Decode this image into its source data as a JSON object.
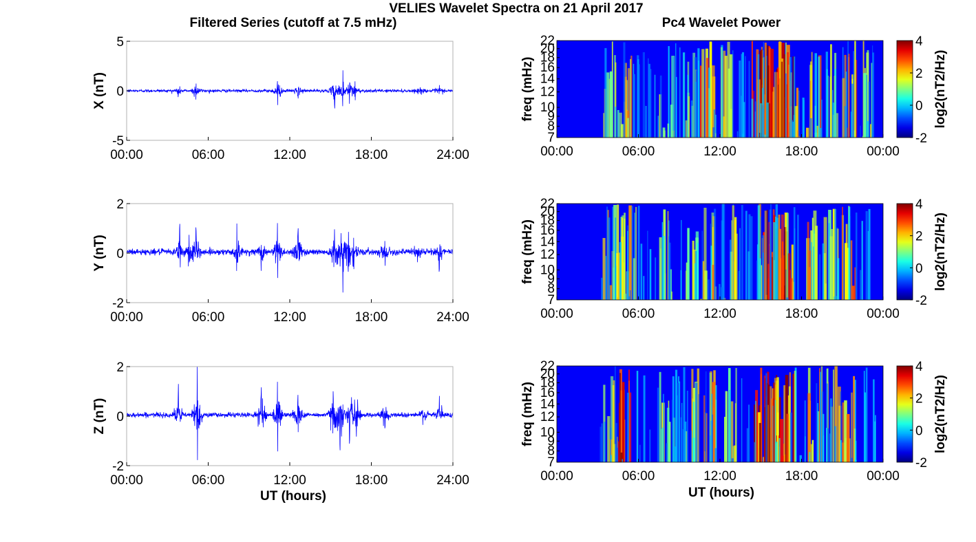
{
  "figure": {
    "title": "VELIES Wavelet Spectra on 21 April 2017"
  },
  "colors": {
    "trace": "#0000ff",
    "axis": "#000000",
    "background": "#ffffff"
  },
  "chart_data": [
    {
      "type": "line",
      "title": "Filtered Series (cutoff at 7.5 mHz)",
      "xlabel": "",
      "ylabel": "X (nT)",
      "xlim": [
        0,
        24
      ],
      "ylim": [
        -5,
        5
      ],
      "xticks": [
        0,
        6,
        12,
        18,
        24
      ],
      "xtick_labels": [
        "00:00",
        "06:00",
        "12:00",
        "18:00",
        "24:00"
      ],
      "yticks": [
        -5,
        0,
        5
      ],
      "ytick_labels": [
        "-5",
        "0",
        "5"
      ],
      "series": [
        {
          "baseline": 0.0,
          "noise": 0.12,
          "bursts": [
            {
              "t": 3.8,
              "amp": 0.7
            },
            {
              "t": 5.1,
              "amp": 1.3
            },
            {
              "t": 11.1,
              "amp": 1.9
            },
            {
              "t": 12.6,
              "amp": 0.9
            },
            {
              "t": 15.3,
              "amp": 1.5
            },
            {
              "t": 15.9,
              "amp": 2.0
            },
            {
              "t": 16.4,
              "amp": 1.3
            },
            {
              "t": 16.8,
              "amp": 1.0
            },
            {
              "t": 21.6,
              "amp": 0.5
            },
            {
              "t": 23.0,
              "amp": 0.6
            }
          ]
        }
      ]
    },
    {
      "type": "line",
      "title": "",
      "xlabel": "",
      "ylabel": "Y (nT)",
      "xlim": [
        0,
        24
      ],
      "ylim": [
        -2,
        2
      ],
      "xticks": [
        0,
        6,
        12,
        18,
        24
      ],
      "xtick_labels": [
        "00:00",
        "06:00",
        "12:00",
        "18:00",
        "24:00"
      ],
      "yticks": [
        -2,
        0,
        2
      ],
      "ytick_labels": [
        "-2",
        "0",
        "2"
      ],
      "series": [
        {
          "baseline": 0.05,
          "noise": 0.1,
          "bursts": [
            {
              "t": 3.9,
              "amp": 0.9
            },
            {
              "t": 4.6,
              "amp": 0.8
            },
            {
              "t": 5.1,
              "amp": 1.0
            },
            {
              "t": 8.1,
              "amp": 0.9
            },
            {
              "t": 9.9,
              "amp": 0.6
            },
            {
              "t": 11.1,
              "amp": 1.5
            },
            {
              "t": 12.6,
              "amp": 1.3
            },
            {
              "t": 15.3,
              "amp": 1.2
            },
            {
              "t": 15.9,
              "amp": 1.7
            },
            {
              "t": 16.3,
              "amp": 1.1
            },
            {
              "t": 16.7,
              "amp": 1.0
            },
            {
              "t": 19.0,
              "amp": 0.6
            },
            {
              "t": 21.4,
              "amp": 0.5
            },
            {
              "t": 23.0,
              "amp": 0.6
            }
          ]
        }
      ]
    },
    {
      "type": "line",
      "title": "",
      "xlabel": "UT (hours)",
      "ylabel": "Z (nT)",
      "xlim": [
        0,
        24
      ],
      "ylim": [
        -2,
        2
      ],
      "xticks": [
        0,
        6,
        12,
        18,
        24
      ],
      "xtick_labels": [
        "00:00",
        "06:00",
        "12:00",
        "18:00",
        "24:00"
      ],
      "yticks": [
        -2,
        0,
        2
      ],
      "ytick_labels": [
        "-2",
        "0",
        "2"
      ],
      "series": [
        {
          "baseline": 0.05,
          "noise": 0.08,
          "bursts": [
            {
              "t": 3.8,
              "amp": 0.9
            },
            {
              "t": 5.2,
              "amp": 1.8
            },
            {
              "t": 9.9,
              "amp": 1.2
            },
            {
              "t": 11.1,
              "amp": 1.6
            },
            {
              "t": 12.6,
              "amp": 0.9
            },
            {
              "t": 15.2,
              "amp": 1.5
            },
            {
              "t": 15.7,
              "amp": 1.6
            },
            {
              "t": 16.4,
              "amp": 1.3
            },
            {
              "t": 16.9,
              "amp": 0.9
            },
            {
              "t": 19.0,
              "amp": 0.6
            },
            {
              "t": 21.8,
              "amp": 0.5
            },
            {
              "t": 23.0,
              "amp": 0.9
            }
          ]
        }
      ]
    },
    {
      "type": "heatmap",
      "title": "Pc4 Wavelet Power",
      "xlabel": "",
      "ylabel": "freq (mHz)",
      "xlim": [
        0,
        24
      ],
      "ylim": [
        7,
        22
      ],
      "xticks": [
        0,
        6,
        12,
        18,
        24
      ],
      "xtick_labels": [
        "00:00",
        "06:00",
        "12:00",
        "18:00",
        "00:00"
      ],
      "yticks": [
        7,
        8,
        9,
        10,
        12,
        14,
        16,
        18,
        20,
        22
      ],
      "ytick_labels": [
        "7",
        "8",
        "9",
        "10",
        "12",
        "14",
        "16",
        "18",
        "20",
        "22"
      ],
      "colorbar": {
        "label": "log2(nT2/Hz)",
        "range": [
          -2,
          4
        ],
        "ticks": [
          "-2",
          "0",
          "2",
          "4"
        ],
        "colormap": "jet"
      },
      "activity": [
        {
          "t": 3.9,
          "lvl": 0.4
        },
        {
          "t": 4.8,
          "lvl": 0.35
        },
        {
          "t": 5.3,
          "lvl": 0.5
        },
        {
          "t": 8.1,
          "lvl": 0.3
        },
        {
          "t": 9.9,
          "lvl": 0.35
        },
        {
          "t": 11.1,
          "lvl": 0.6
        },
        {
          "t": 12.6,
          "lvl": 0.45
        },
        {
          "t": 14.9,
          "lvl": 0.7
        },
        {
          "t": 15.4,
          "lvl": 0.9
        },
        {
          "t": 15.9,
          "lvl": 0.95
        },
        {
          "t": 16.4,
          "lvl": 0.85
        },
        {
          "t": 16.9,
          "lvl": 0.8
        },
        {
          "t": 17.4,
          "lvl": 0.6
        },
        {
          "t": 18.9,
          "lvl": 0.55
        },
        {
          "t": 20.1,
          "lvl": 0.45
        },
        {
          "t": 21.5,
          "lvl": 0.6
        },
        {
          "t": 22.7,
          "lvl": 0.4
        }
      ]
    },
    {
      "type": "heatmap",
      "title": "",
      "xlabel": "",
      "ylabel": "freq (mHz)",
      "xlim": [
        0,
        24
      ],
      "ylim": [
        7,
        22
      ],
      "xticks": [
        0,
        6,
        12,
        18,
        24
      ],
      "xtick_labels": [
        "00:00",
        "06:00",
        "12:00",
        "18:00",
        "00:00"
      ],
      "yticks": [
        7,
        8,
        9,
        10,
        12,
        14,
        16,
        18,
        20,
        22
      ],
      "ytick_labels": [
        "7",
        "8",
        "9",
        "10",
        "12",
        "14",
        "16",
        "18",
        "20",
        "22"
      ],
      "colorbar": {
        "label": "log2(nT2/Hz)",
        "range": [
          -2,
          4
        ],
        "ticks": [
          "-2",
          "0",
          "2",
          "4"
        ],
        "colormap": "jet"
      },
      "activity": [
        {
          "t": 4.0,
          "lvl": 0.45
        },
        {
          "t": 4.6,
          "lvl": 0.4
        },
        {
          "t": 5.3,
          "lvl": 0.45
        },
        {
          "t": 8.0,
          "lvl": 0.4
        },
        {
          "t": 9.9,
          "lvl": 0.35
        },
        {
          "t": 11.1,
          "lvl": 0.55
        },
        {
          "t": 12.7,
          "lvl": 0.5
        },
        {
          "t": 15.3,
          "lvl": 0.7
        },
        {
          "t": 15.9,
          "lvl": 0.85
        },
        {
          "t": 16.4,
          "lvl": 0.75
        },
        {
          "t": 16.9,
          "lvl": 0.7
        },
        {
          "t": 18.9,
          "lvl": 0.55
        },
        {
          "t": 20.2,
          "lvl": 0.45
        },
        {
          "t": 21.5,
          "lvl": 0.55
        }
      ]
    },
    {
      "type": "heatmap",
      "title": "",
      "xlabel": "UT (hours)",
      "ylabel": "freq (mHz)",
      "xlim": [
        0,
        24
      ],
      "ylim": [
        7,
        22
      ],
      "xticks": [
        0,
        6,
        12,
        18,
        24
      ],
      "xtick_labels": [
        "00:00",
        "06:00",
        "12:00",
        "18:00",
        "00:00"
      ],
      "yticks": [
        7,
        8,
        9,
        10,
        12,
        14,
        16,
        18,
        20,
        22
      ],
      "ytick_labels": [
        "7",
        "8",
        "9",
        "10",
        "12",
        "14",
        "16",
        "18",
        "20",
        "22"
      ],
      "colorbar": {
        "label": "log2(nT2/Hz)",
        "range": [
          -2,
          4
        ],
        "ticks": [
          "-2",
          "0",
          "2",
          "4"
        ],
        "colormap": "jet"
      },
      "activity": [
        {
          "t": 3.9,
          "lvl": 0.45
        },
        {
          "t": 5.1,
          "lvl": 0.8
        },
        {
          "t": 8.1,
          "lvl": 0.35
        },
        {
          "t": 9.9,
          "lvl": 0.4
        },
        {
          "t": 11.2,
          "lvl": 0.5
        },
        {
          "t": 12.7,
          "lvl": 0.4
        },
        {
          "t": 14.9,
          "lvl": 0.75
        },
        {
          "t": 15.4,
          "lvl": 0.85
        },
        {
          "t": 15.9,
          "lvl": 0.8
        },
        {
          "t": 16.5,
          "lvl": 0.7
        },
        {
          "t": 17.0,
          "lvl": 0.65
        },
        {
          "t": 19.0,
          "lvl": 0.5
        },
        {
          "t": 20.3,
          "lvl": 0.45
        },
        {
          "t": 21.5,
          "lvl": 0.55
        }
      ]
    }
  ]
}
